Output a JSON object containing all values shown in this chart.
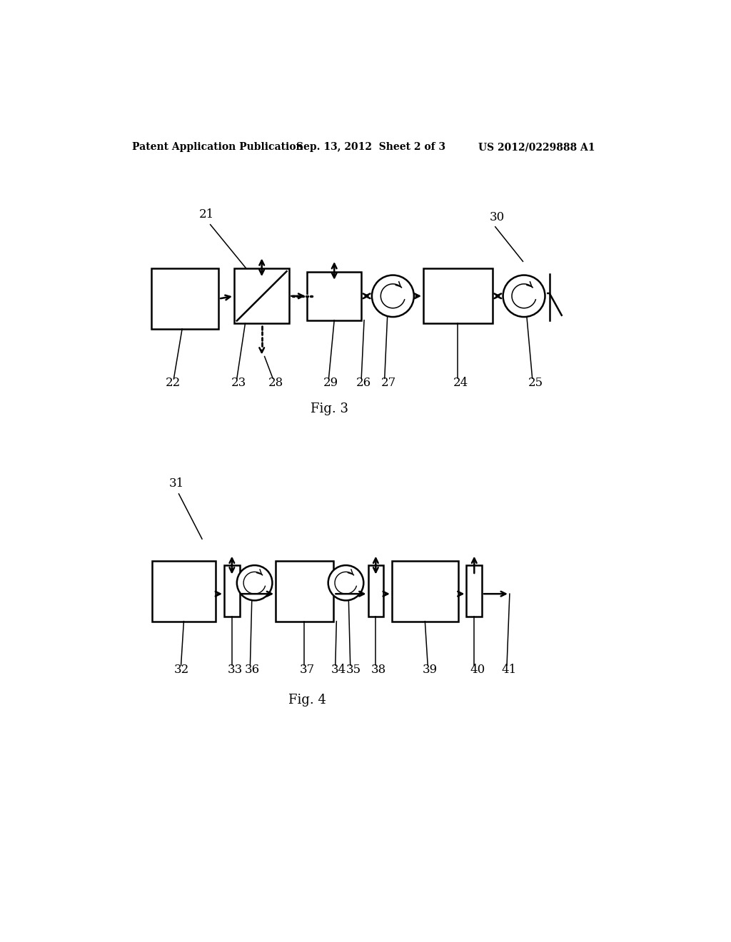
{
  "header_left": "Patent Application Publication",
  "header_mid": "Sep. 13, 2012  Sheet 2 of 3",
  "header_right": "US 2012/0229888 A1",
  "fig3_label": "Fig. 3",
  "fig4_label": "Fig. 4"
}
